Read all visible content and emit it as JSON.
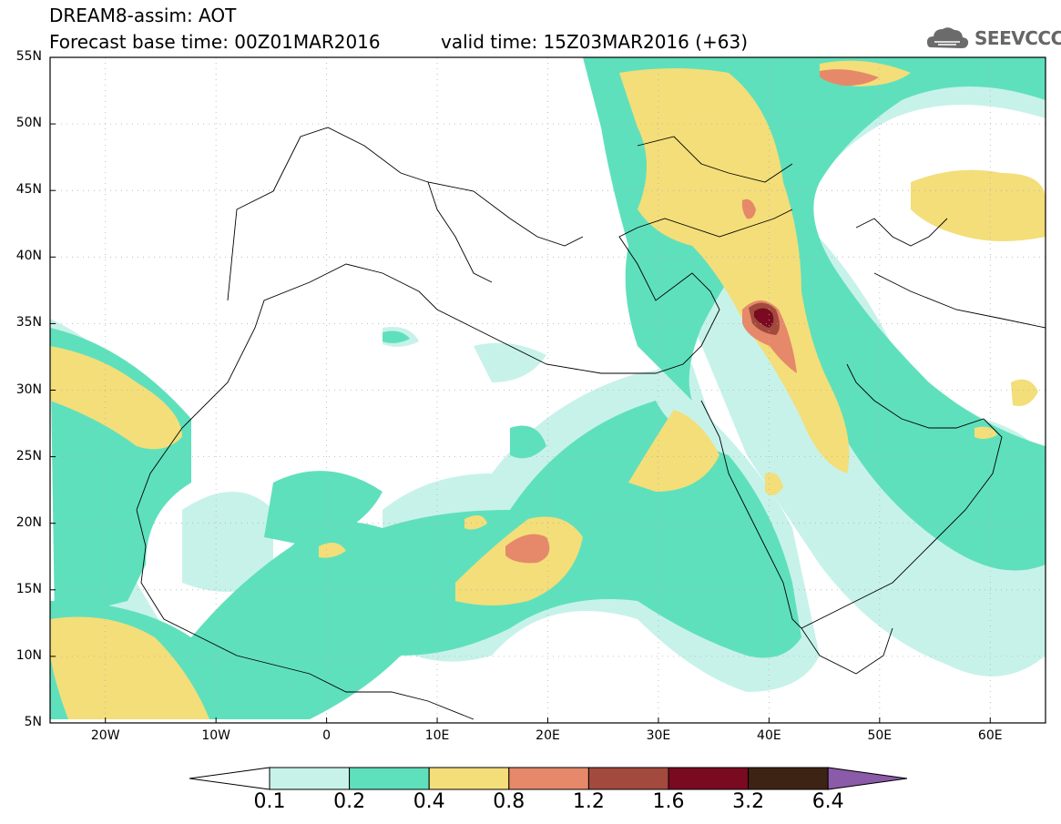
{
  "header": {
    "line1": "DREAM8-assim: AOT",
    "line2": "Forecast base time: 00Z01MAR2016",
    "line3": "valid time: 15Z03MAR2016 (+63)",
    "logo_text": "SEEVCCC"
  },
  "map": {
    "lat_labels": [
      "55N",
      "50N",
      "45N",
      "40N",
      "35N",
      "30N",
      "25N",
      "20N",
      "15N",
      "10N",
      "5N"
    ],
    "lon_labels": [
      "20W",
      "10W",
      "0",
      "10E",
      "20E",
      "30E",
      "40E",
      "50E",
      "60E"
    ],
    "colors": {
      "c1": "#c7f2ea",
      "c2": "#5fe0bc",
      "c3": "#f3de79",
      "c4": "#e6896a",
      "c5": "#a34a3e",
      "c6": "#7a0a20",
      "c7": "#3d2314",
      "c8": "#8b5aa8"
    }
  },
  "colorbar": {
    "labels": [
      "0.1",
      "0.2",
      "0.4",
      "0.8",
      "1.2",
      "1.6",
      "3.2",
      "6.4"
    ]
  }
}
